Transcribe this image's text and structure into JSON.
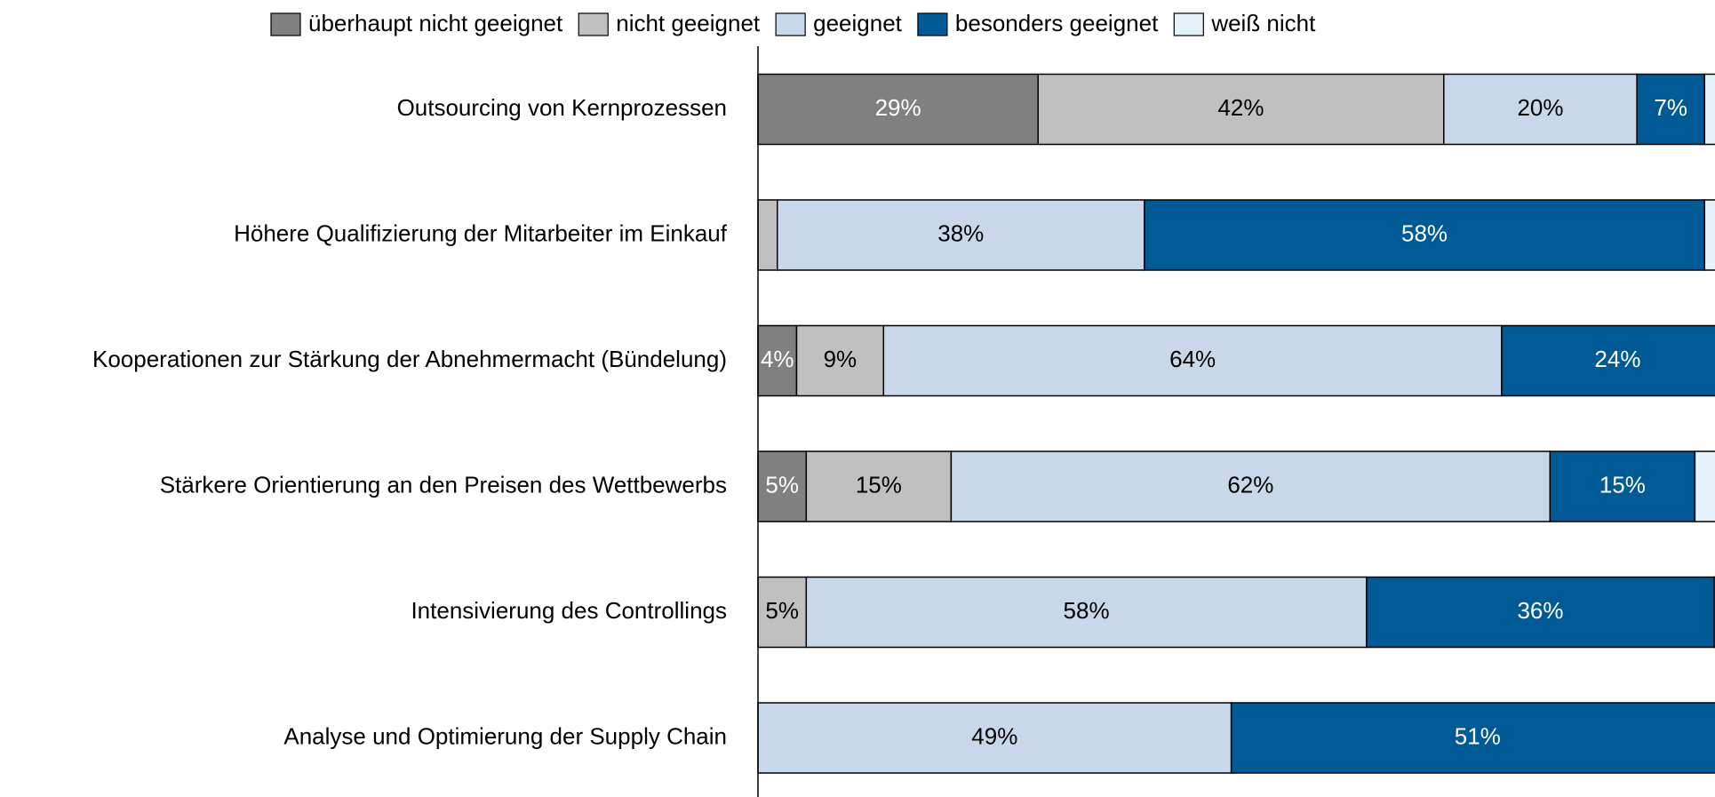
{
  "chart_data": {
    "type": "bar",
    "orientation": "horizontal",
    "stacked": true,
    "categories": [
      "Outsourcing von Kernprozessen",
      "Höhere Qualifizierung der Mitarbeiter im Einkauf",
      "Kooperationen zur Stärkung der Abnehmermacht (Bündelung)",
      "Stärkere Orientierung an den Preisen des Wettbewerbs",
      "Intensivierung des Controllings",
      "Analyse und Optimierung der Supply Chain"
    ],
    "series": [
      {
        "name": "überhaupt nicht geeignet",
        "color": "#808080",
        "values": [
          29,
          0,
          4,
          5,
          0,
          0
        ],
        "value_labels": [
          "29%",
          null,
          "4%",
          "5%",
          null,
          null
        ]
      },
      {
        "name": "nicht geeignet",
        "color": "#c0c0c0",
        "values": [
          42,
          2,
          9,
          15,
          5,
          0
        ],
        "value_labels": [
          "42%",
          null,
          "9%",
          "15%",
          "5%",
          null
        ]
      },
      {
        "name": "geeignet",
        "color": "#c8d7ea",
        "values": [
          20,
          38,
          64,
          62,
          58,
          49
        ],
        "value_labels": [
          "20%",
          "38%",
          "64%",
          "62%",
          "58%",
          "49%"
        ]
      },
      {
        "name": "besonders geeignet",
        "color": "#005a96",
        "values": [
          7,
          58,
          24,
          15,
          36,
          51
        ],
        "value_labels": [
          "7%",
          "58%",
          "24%",
          "15%",
          "36%",
          "51%"
        ]
      },
      {
        "name": "weiß nicht",
        "color": "#e6f2fa",
        "values": [
          2,
          2,
          0,
          3,
          1,
          0
        ],
        "value_labels": [
          null,
          null,
          null,
          null,
          null,
          null
        ]
      }
    ],
    "xlim": [
      0,
      100
    ],
    "legend": "top"
  }
}
